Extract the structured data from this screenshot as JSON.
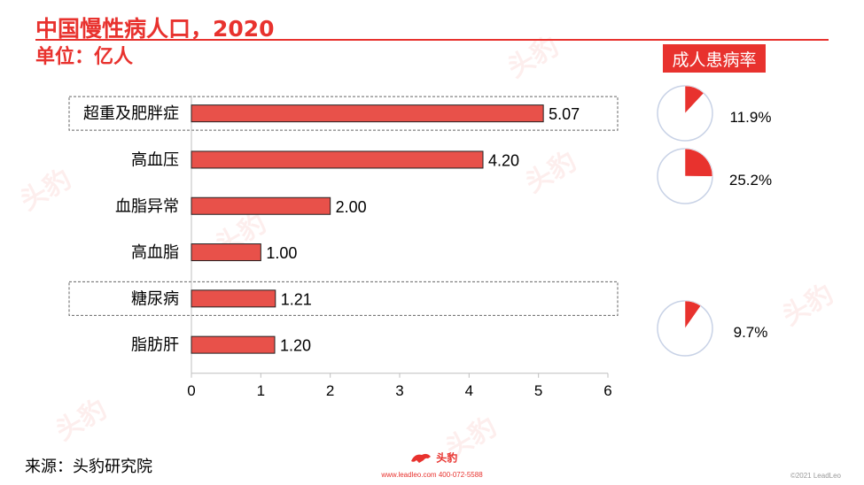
{
  "page": {
    "title": "中国慢性病人口，2020",
    "unit": "单位：亿人",
    "rate_badge": "成人患病率",
    "source": "来源：头豹研究院",
    "brand_name": "头豹",
    "contact": "www.leadleo.com  400-072-5588",
    "copyright": "©2021 LeadLeo",
    "watermark_text": "头豹"
  },
  "colors": {
    "accent": "#e8322e",
    "bar": "#e8514a",
    "pie_outline": "#c8d2e6"
  },
  "chart_data": {
    "type": "bar",
    "orientation": "horizontal",
    "categories": [
      "超重及肥胖症",
      "高血压",
      "血脂异常",
      "高血脂",
      "糖尿病",
      "脂肪肝"
    ],
    "values": [
      5.07,
      4.2,
      2.0,
      1.0,
      1.21,
      1.2
    ],
    "value_labels": [
      "5.07",
      "4.20",
      "2.00",
      "1.00",
      "1.21",
      "1.20"
    ],
    "xlim": [
      0,
      6
    ],
    "xticks": [
      0,
      1,
      2,
      3,
      4,
      5,
      6
    ],
    "grid": false,
    "highlighted_categories": [
      "超重及肥胖症",
      "糖尿病"
    ],
    "prevalence": [
      {
        "category": "超重及肥胖症",
        "value": 11.9,
        "label": "11.9%"
      },
      {
        "category": "高血压",
        "value": 25.2,
        "label": "25.2%"
      },
      {
        "category": "糖尿病",
        "value": 9.7,
        "label": "9.7%"
      }
    ]
  }
}
